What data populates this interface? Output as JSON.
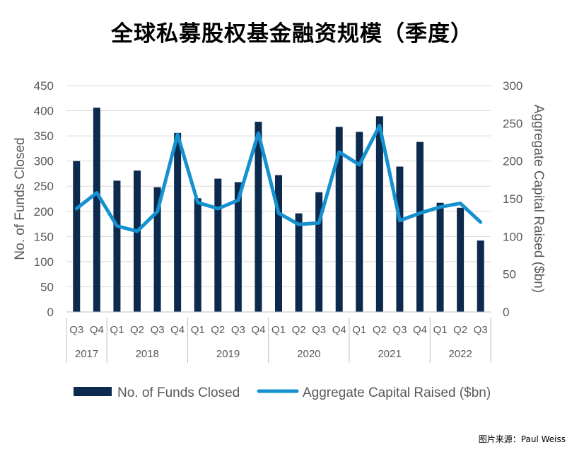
{
  "title": "全球私募股权基金融资规模（季度）",
  "source": "图片来源：Paul Weiss",
  "colors": {
    "bar": "#0b2a4d",
    "line": "#1591d0",
    "text": "#595959",
    "grid": "#d9d9d9"
  },
  "chart_data": {
    "type": "bar",
    "categories": [
      "Q3",
      "Q4",
      "Q1",
      "Q2",
      "Q3",
      "Q4",
      "Q1",
      "Q2",
      "Q3",
      "Q4",
      "Q1",
      "Q2",
      "Q3",
      "Q4",
      "Q1",
      "Q2",
      "Q3",
      "Q4",
      "Q1",
      "Q2",
      "Q3"
    ],
    "years": [
      {
        "label": "2017",
        "count": 2
      },
      {
        "label": "2018",
        "count": 4
      },
      {
        "label": "2019",
        "count": 4
      },
      {
        "label": "2020",
        "count": 4
      },
      {
        "label": "2021",
        "count": 4
      },
      {
        "label": "2022",
        "count": 3
      }
    ],
    "series": [
      {
        "name": "No. of Funds Closed",
        "type": "bar",
        "axis": "left",
        "values": [
          300,
          406,
          261,
          281,
          248,
          356,
          226,
          265,
          258,
          378,
          272,
          196,
          238,
          368,
          358,
          389,
          289,
          338,
          217,
          207,
          142
        ]
      },
      {
        "name": "Aggregate Capital Raised ($bn)",
        "type": "line",
        "axis": "right",
        "values": [
          137,
          158,
          114,
          107,
          133,
          235,
          145,
          137,
          148,
          237,
          131,
          116,
          118,
          212,
          195,
          247,
          121,
          131,
          139,
          144,
          119
        ]
      }
    ],
    "ylabel_left": "No. of Funds Closed",
    "ylabel_right": "Aggregate Capital Raised ($bn)",
    "ylim_left": [
      0,
      450
    ],
    "ylim_right": [
      0,
      300
    ],
    "yticks_left": [
      "0",
      "50",
      "100",
      "150",
      "200",
      "250",
      "300",
      "350",
      "400",
      "450"
    ],
    "yticks_right": [
      "0",
      "50",
      "100",
      "150",
      "200",
      "250",
      "300"
    ],
    "grid": true,
    "legend_position": "bottom"
  }
}
